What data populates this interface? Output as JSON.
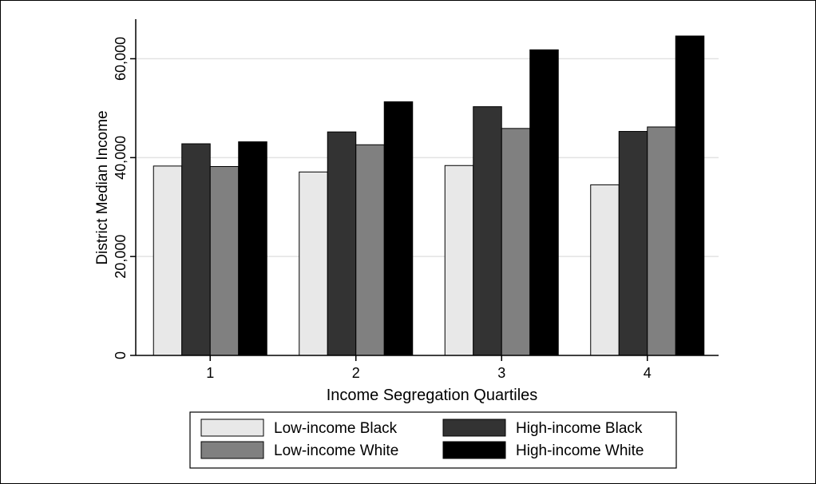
{
  "chart_data": {
    "type": "bar",
    "categories": [
      "1",
      "2",
      "3",
      "4"
    ],
    "series": [
      {
        "name": "Low-income Black",
        "values": [
          38300,
          37100,
          38400,
          34500
        ],
        "color": "#e8e8e8"
      },
      {
        "name": "High-income Black",
        "values": [
          42800,
          45200,
          50300,
          45300
        ],
        "color": "#333333"
      },
      {
        "name": "Low-income White",
        "values": [
          38200,
          42600,
          45900,
          46200
        ],
        "color": "#808080"
      },
      {
        "name": "High-income White",
        "values": [
          43200,
          51300,
          61800,
          64600
        ],
        "color": "#000000"
      }
    ],
    "xlabel": "Income Segregation Quartiles",
    "ylabel": "District Median Income",
    "ylim": [
      0,
      68000
    ],
    "yticks": [
      0,
      20000,
      40000,
      60000
    ],
    "ytick_labels": [
      "0",
      "20,000",
      "40,000",
      "60,000"
    ],
    "grid": true,
    "legend": {
      "placement": "bottom"
    }
  }
}
